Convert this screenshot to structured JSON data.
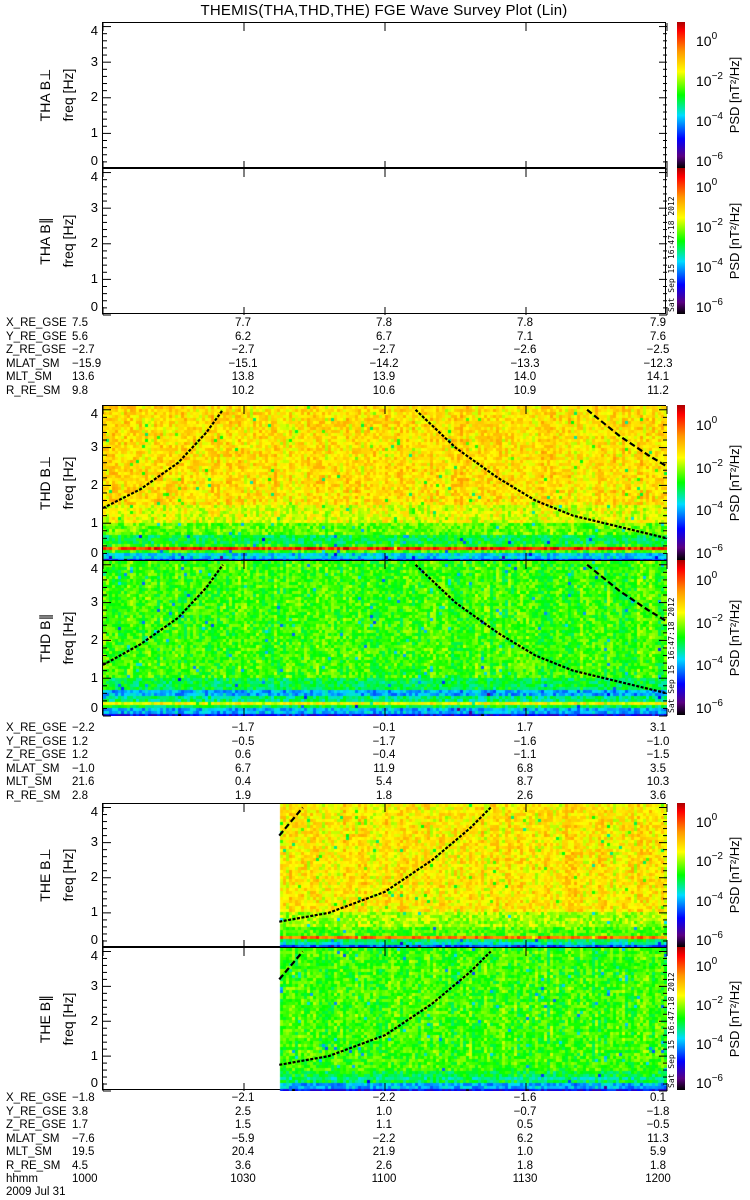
{
  "title": "THEMIS(THA,THD,THE) FGE Wave Survey Plot (Lin)",
  "stamp": "Sat Sep 15 16:47:18 2012",
  "date": "2009 Jul 31",
  "chart_data": {
    "type": "heatmap",
    "title": "THEMIS(THA,THD,THE) FGE Wave Survey Plot (Lin)",
    "xlabel": "hhmm",
    "x_range_minutes_from_1000": [
      0,
      120
    ],
    "x_ticks": [
      "1000",
      "1030",
      "1100",
      "1130",
      "1200"
    ],
    "ylabel": "freq [Hz]",
    "ylim": [
      0,
      4.1
    ],
    "y_ticks": [
      "0",
      "1",
      "2",
      "3",
      "4"
    ],
    "colorbar": {
      "label": "PSD [nT²/Hz]",
      "base": "10",
      "exponents": [
        "0",
        "−2",
        "−4",
        "−6"
      ],
      "exponent_values": [
        0,
        -2,
        -4,
        -6
      ],
      "log_range": [
        -6.4,
        0.9
      ]
    },
    "panels": [
      {
        "probe": "THA",
        "label": "THA B⊥",
        "has_data": false,
        "data_start_min": 0,
        "bands": [],
        "curves": []
      },
      {
        "probe": "THA",
        "label": "THA B∥",
        "has_data": false,
        "data_start_min": 0,
        "bands": [],
        "curves": []
      },
      {
        "probe": "THD",
        "label": "THD B⊥",
        "has_data": true,
        "data_start_min": 0,
        "bands": [
          [
            0,
            0.05,
            -4.8
          ],
          [
            0.05,
            0.22,
            -3.8
          ],
          [
            0.22,
            0.27,
            -2.5
          ],
          [
            0.27,
            0.36,
            0.2
          ],
          [
            0.36,
            0.45,
            -2.6
          ],
          [
            0.45,
            0.65,
            -3.0
          ],
          [
            0.65,
            1.0,
            -2.3
          ],
          [
            1.0,
            1.5,
            -1.7
          ],
          [
            1.5,
            4.2,
            -1.3
          ]
        ],
        "curves": [
          {
            "style": "dotted",
            "points": [
              [
                0,
                1.4
              ],
              [
                8,
                1.9
              ],
              [
                16,
                2.6
              ],
              [
                22,
                3.4
              ],
              [
                25.5,
                4.0
              ]
            ]
          },
          {
            "style": "dotted",
            "points": [
              [
                66.5,
                4.0
              ],
              [
                75,
                3.0
              ],
              [
                84,
                2.2
              ],
              [
                92,
                1.6
              ],
              [
                100,
                1.2
              ],
              [
                110,
                0.9
              ],
              [
                120,
                0.6
              ]
            ]
          },
          {
            "style": "dashed",
            "points": [
              [
                103,
                4.0
              ],
              [
                110,
                3.3
              ],
              [
                116,
                2.8
              ],
              [
                120,
                2.5
              ]
            ]
          }
        ]
      },
      {
        "probe": "THD",
        "label": "THD B∥",
        "has_data": true,
        "data_start_min": 0,
        "bands": [
          [
            0,
            0.05,
            -5
          ],
          [
            0.05,
            0.2,
            -4.0
          ],
          [
            0.2,
            0.3,
            -3.0
          ],
          [
            0.3,
            0.38,
            -1.6
          ],
          [
            0.38,
            0.55,
            -3.2
          ],
          [
            0.55,
            0.65,
            -4
          ],
          [
            0.65,
            1.0,
            -3.0
          ],
          [
            1.0,
            4.2,
            -2.5
          ]
        ],
        "curves": [
          {
            "style": "dotted",
            "points": [
              [
                0,
                1.35
              ],
              [
                8,
                1.9
              ],
              [
                16,
                2.6
              ],
              [
                22,
                3.4
              ],
              [
                25.5,
                4.0
              ]
            ]
          },
          {
            "style": "dotted",
            "points": [
              [
                66.5,
                4.0
              ],
              [
                75,
                3.0
              ],
              [
                84,
                2.2
              ],
              [
                92,
                1.6
              ],
              [
                100,
                1.2
              ],
              [
                110,
                0.9
              ],
              [
                120,
                0.6
              ]
            ]
          },
          {
            "style": "dashed",
            "points": [
              [
                103,
                4.0
              ],
              [
                110,
                3.3
              ],
              [
                116,
                2.8
              ],
              [
                120,
                2.5
              ]
            ]
          }
        ]
      },
      {
        "probe": "THE",
        "label": "THE B⊥",
        "has_data": true,
        "data_start_min": 37.5,
        "bands": [
          [
            0,
            0.05,
            -4.5
          ],
          [
            0.05,
            0.2,
            -3.5
          ],
          [
            0.2,
            0.26,
            -3
          ],
          [
            0.26,
            0.36,
            -0.3
          ],
          [
            0.36,
            0.6,
            -2.4
          ],
          [
            0.6,
            1.0,
            -2.0
          ],
          [
            1.0,
            4.2,
            -1.4
          ]
        ],
        "curves": [
          {
            "style": "dashed",
            "points": [
              [
                37.5,
                3.2
              ],
              [
                40,
                3.6
              ],
              [
                42.5,
                4.0
              ]
            ]
          },
          {
            "style": "dotted",
            "points": [
              [
                37.5,
                0.75
              ],
              [
                48,
                1.0
              ],
              [
                60,
                1.6
              ],
              [
                70,
                2.5
              ],
              [
                78,
                3.4
              ],
              [
                82.5,
                4.0
              ]
            ]
          }
        ]
      },
      {
        "probe": "THE",
        "label": "THE B∥",
        "has_data": true,
        "data_start_min": 37.5,
        "bands": [
          [
            0,
            0.08,
            -5
          ],
          [
            0.08,
            0.2,
            -4
          ],
          [
            0.2,
            0.3,
            -3
          ],
          [
            0.3,
            0.38,
            -3.3
          ],
          [
            0.38,
            0.6,
            -2.9
          ],
          [
            0.6,
            4.2,
            -2.5
          ]
        ],
        "curves": [
          {
            "style": "dashed",
            "points": [
              [
                37.5,
                3.2
              ],
              [
                40,
                3.6
              ],
              [
                42.5,
                4.0
              ]
            ]
          },
          {
            "style": "dotted",
            "points": [
              [
                37.5,
                0.75
              ],
              [
                48,
                1.0
              ],
              [
                60,
                1.6
              ],
              [
                70,
                2.5
              ],
              [
                78,
                3.4
              ],
              [
                82.5,
                4.0
              ]
            ]
          }
        ]
      }
    ]
  },
  "ephemeris": [
    {
      "probe": "THA",
      "rows": [
        {
          "label": "X_RE_GSE",
          "values": [
            "7.5",
            "7.7",
            "7.8",
            "7.8",
            "7.9"
          ]
        },
        {
          "label": "Y_RE_GSE",
          "values": [
            "5.6",
            "6.2",
            "6.7",
            "7.1",
            "7.6"
          ]
        },
        {
          "label": "Z_RE_GSE",
          "values": [
            "−2.7",
            "−2.7",
            "−2.7",
            "−2.6",
            "−2.5"
          ]
        },
        {
          "label": "MLAT_SM",
          "values": [
            "−15.9",
            "−15.1",
            "−14.2",
            "−13.3",
            "−12.3"
          ]
        },
        {
          "label": "MLT_SM",
          "values": [
            "13.6",
            "13.8",
            "13.9",
            "14.0",
            "14.1"
          ]
        },
        {
          "label": "R_RE_SM",
          "values": [
            "9.8",
            "10.2",
            "10.6",
            "10.9",
            "11.2"
          ]
        }
      ]
    },
    {
      "probe": "THD",
      "rows": [
        {
          "label": "X_RE_GSE",
          "values": [
            "−2.2",
            "−1.7",
            "−0.1",
            "1.7",
            "3.1"
          ]
        },
        {
          "label": "Y_RE_GSE",
          "values": [
            "1.2",
            "−0.5",
            "−1.7",
            "−1.6",
            "−1.0"
          ]
        },
        {
          "label": "Z_RE_GSE",
          "values": [
            "1.2",
            "0.6",
            "−0.4",
            "−1.1",
            "−1.5"
          ]
        },
        {
          "label": "MLAT_SM",
          "values": [
            "−1.0",
            "6.7",
            "11.9",
            "6.8",
            "3.5"
          ]
        },
        {
          "label": "MLT_SM",
          "values": [
            "21.6",
            "0.4",
            "5.4",
            "8.7",
            "10.3"
          ]
        },
        {
          "label": "R_RE_SM",
          "values": [
            "2.8",
            "1.9",
            "1.8",
            "2.6",
            "3.6"
          ]
        }
      ]
    },
    {
      "probe": "THE",
      "rows": [
        {
          "label": "X_RE_GSE",
          "values": [
            "−1.8",
            "−2.1",
            "−2.2",
            "−1.6",
            "0.1"
          ]
        },
        {
          "label": "Y_RE_GSE",
          "values": [
            "3.8",
            "2.5",
            "1.0",
            "−0.7",
            "−1.8"
          ]
        },
        {
          "label": "Z_RE_GSE",
          "values": [
            "1.7",
            "1.5",
            "1.1",
            "0.5",
            "−0.5"
          ]
        },
        {
          "label": "MLAT_SM",
          "values": [
            "−7.6",
            "−5.9",
            "−2.2",
            "6.2",
            "11.3"
          ]
        },
        {
          "label": "MLT_SM",
          "values": [
            "19.5",
            "20.4",
            "21.9",
            "1.0",
            "5.9"
          ]
        },
        {
          "label": "R_RE_SM",
          "values": [
            "4.5",
            "3.6",
            "2.6",
            "1.8",
            "1.8"
          ]
        },
        {
          "label": "hhmm",
          "values": [
            "1000",
            "1030",
            "1100",
            "1130",
            "1200"
          ]
        }
      ]
    }
  ]
}
